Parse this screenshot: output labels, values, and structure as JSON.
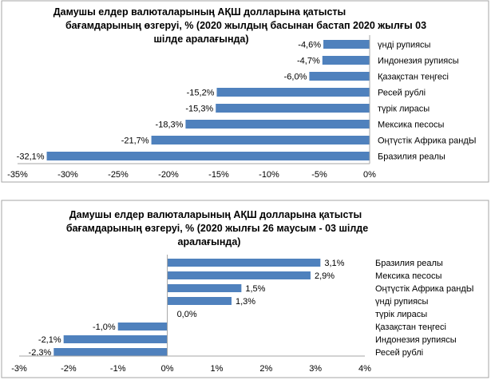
{
  "chart_data": [
    {
      "type": "bar",
      "orientation": "horizontal",
      "title_lines": [
        "Дамушы елдер валюталарының АҚШ долларына қатысты",
        "бағамдарының өзгеруі, %  (2020 жылдың басынан бастап 2020 жылғы 03",
        "шілде аралағында)"
      ],
      "categories": [
        "үнді рупиясы",
        "Индонезия рупиясы",
        "Қазақстан теңгесі",
        "Ресей рублі",
        "түрік лирасы",
        "Мексика песосы",
        "Оңтүстік Африка рандЫ",
        "Бразилия реалы"
      ],
      "values": [
        -4.6,
        -4.7,
        -6.0,
        -15.2,
        -15.3,
        -18.3,
        -21.7,
        -32.1
      ],
      "data_labels": [
        "-4,6%",
        "-4,7%",
        "-6,0%",
        "-15,2%",
        "-15,3%",
        "-18,3%",
        "-21,7%",
        "-32,1%"
      ],
      "xlim": [
        -35,
        0
      ],
      "x_ticks": [
        "-35%",
        "-30%",
        "-25%",
        "-20%",
        "-15%",
        "-10%",
        "-5%",
        "0%"
      ],
      "bar_color": "#4f81bd"
    },
    {
      "type": "bar",
      "orientation": "horizontal",
      "title_lines": [
        "Дамушы елдер валюталарының АҚШ долларына қатысты",
        "бағамдарының өзгеруі, %  (2020 жылғы 26 маусым - 03 шілде",
        "аралағында)"
      ],
      "categories": [
        "Бразилия реалы",
        "Мексика песосы",
        "Оңтүстік Африка рандЫ",
        "үнді рупиясы",
        "түрік лирасы",
        "Қазақстан теңгесі",
        "Индонезия рупиясы",
        "Ресей рублі"
      ],
      "values": [
        3.1,
        2.9,
        1.5,
        1.3,
        0.0,
        -1.0,
        -2.1,
        -2.3
      ],
      "data_labels": [
        "3,1%",
        "2,9%",
        "1,5%",
        "1,3%",
        "0,0%",
        "-1,0%",
        "-2,1%",
        "-2,3%"
      ],
      "xlim": [
        -3,
        4
      ],
      "x_ticks": [
        "-3%",
        "-2%",
        "-1%",
        "0%",
        "1%",
        "2%",
        "3%",
        "4%"
      ],
      "bar_color": "#4f81bd"
    }
  ]
}
